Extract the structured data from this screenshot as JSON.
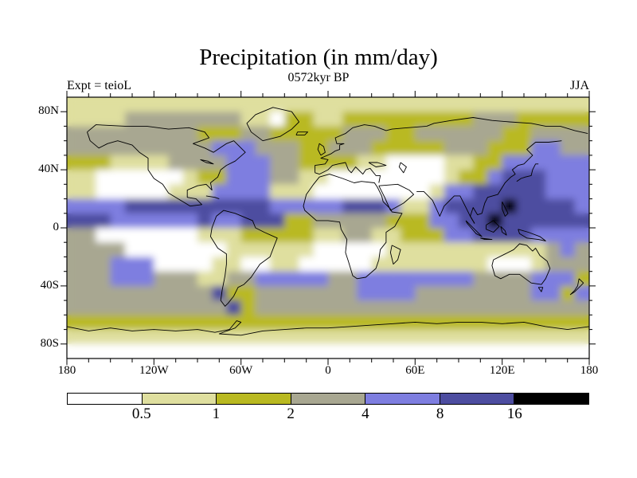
{
  "title": "Precipitation (in mm/day)",
  "subtitle": "0572kyr BP",
  "annotations": {
    "experiment_label": "Expt = teioL",
    "season_label": "JJA"
  },
  "axes": {
    "x_tick_labels": [
      "180",
      "120W",
      "60W",
      "0",
      "60E",
      "120E",
      "180"
    ],
    "y_tick_labels": [
      "80N",
      "40N",
      "0",
      "40S",
      "80S"
    ]
  },
  "colorbar": {
    "boundary_labels": [
      "0.5",
      "1",
      "2",
      "4",
      "8",
      "16"
    ],
    "colors": [
      "#ffffff",
      "#dfdf9f",
      "#b9b921",
      "#a8a791",
      "#7e7ee0",
      "#4d4da0",
      "#000000"
    ]
  },
  "chart_data": {
    "type": "heatmap",
    "title": "Precipitation (in mm/day)",
    "subtitle": "0572kyr BP",
    "experiment": "teioL",
    "season": "JJA",
    "units": "mm/day",
    "projection": "equirectangular world map with coastlines",
    "lon_range": [
      -180,
      180
    ],
    "lat_range": [
      -90,
      90
    ],
    "x_tick_labels": [
      "180",
      "120W",
      "60W",
      "0",
      "60E",
      "120E",
      "180"
    ],
    "y_tick_labels": [
      "80N",
      "40N",
      "0",
      "40S",
      "80S"
    ],
    "contour_levels": [
      0.5,
      1,
      2,
      4,
      8,
      16
    ],
    "bin_meaning_mm_per_day": [
      "<0.5",
      "0.5-1",
      "1-2",
      "2-4",
      "4-8",
      "8-16",
      ">16"
    ],
    "bin_colors": [
      "#ffffff",
      "#dfdf9f",
      "#b9b921",
      "#a8a791",
      "#7e7ee0",
      "#4d4da0",
      "#000000"
    ],
    "grid_cell_deg": 10,
    "grid_note": "rows north-to-south (90N-80N first), 36 columns from 180W to 180E; digit = color bin index",
    "grid_rows_north_to_south": [
      "111111111111111111111111111111111111",
      "111133333333110221122222222233322222",
      "333333333222332222233322333333223333",
      "333333333344433322333222223332224433",
      "222111133334443322221100001122444444",
      "110000001224443311000000001224555444",
      "110000011144441110000000014455555444",
      "444455555555554444455541145555655554",
      "555444444544555223333322244556555555",
      "330000000111222221133112224455554444",
      "333300000001111110000011111111111343",
      "333444000011001100000111111110001333",
      "333444333113344444334444444433334442",
      "333333333352233333334444333333334424",
      "333333333335233333333333333333333333",
      "222222222222222222222222222222222222",
      "111111111111111111111111111111111111",
      "000000000000000000000000000000000000"
    ]
  }
}
